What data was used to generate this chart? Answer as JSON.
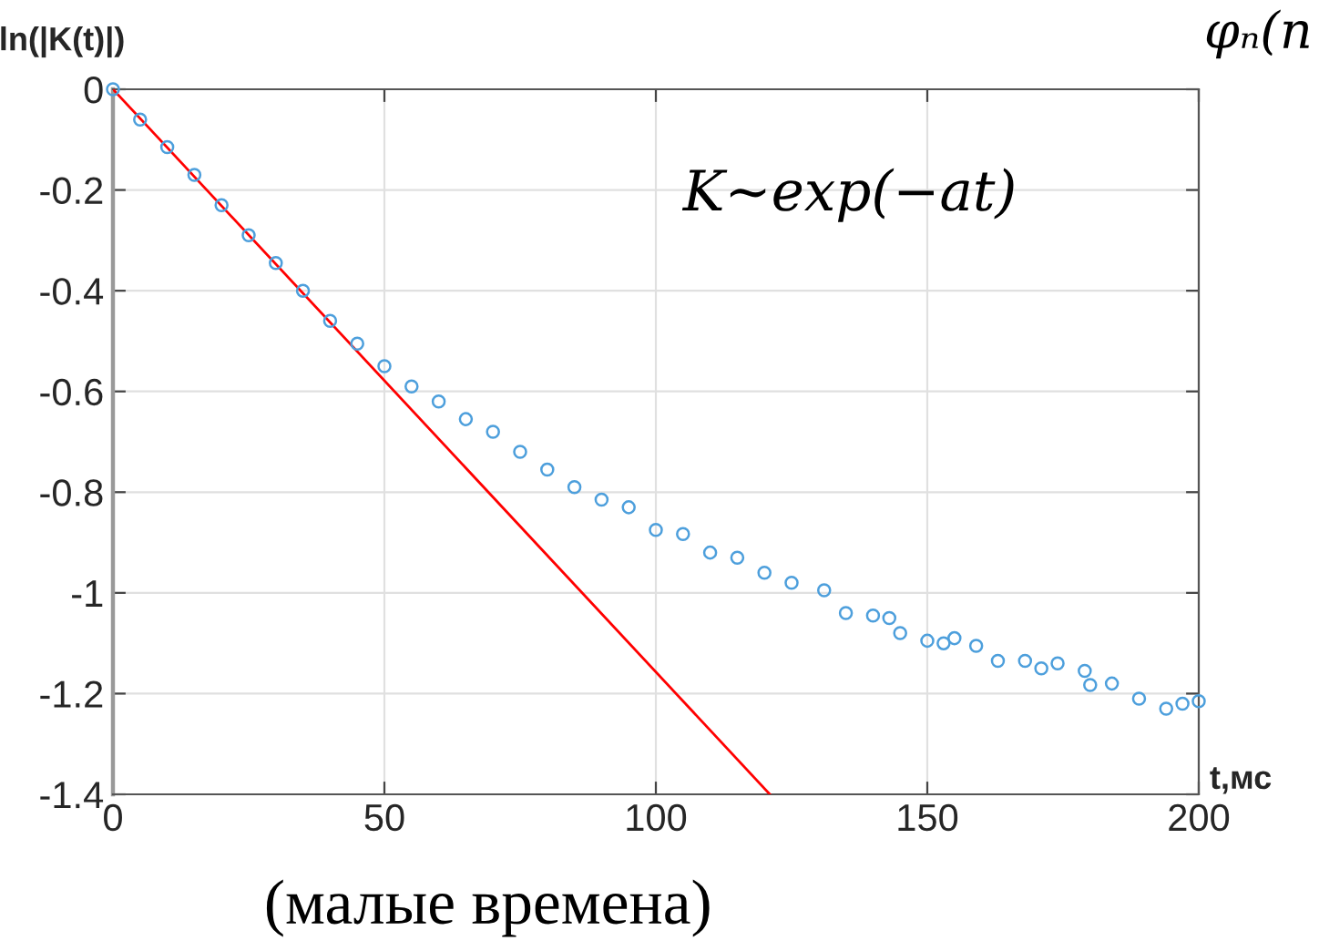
{
  "chart_data": {
    "type": "scatter",
    "xlabel": "t,мс",
    "ylabel": "ln(|K(t)|)",
    "xlim": [
      0,
      200
    ],
    "ylim": [
      -1.4,
      0
    ],
    "xticks": [
      0,
      50,
      100,
      150,
      200
    ],
    "yticks": [
      -1.4,
      -1.2,
      -1,
      -0.8,
      -0.6,
      -0.4,
      -0.2,
      0
    ],
    "grid": true,
    "series": [
      {
        "color": "#4d9fdc",
        "marker": "circle",
        "x": [
          0,
          5,
          10,
          15,
          20,
          25,
          30,
          35,
          40,
          45,
          50,
          55,
          60,
          65,
          70,
          75,
          80,
          85,
          90,
          95,
          100,
          105,
          110,
          115,
          120,
          125,
          131,
          135,
          140,
          143,
          145,
          150,
          153,
          155,
          159,
          163,
          168,
          171,
          174,
          179,
          180,
          184,
          189,
          194,
          197,
          200
        ],
        "values": [
          0,
          -0.06,
          -0.115,
          -0.17,
          -0.23,
          -0.29,
          -0.345,
          -0.4,
          -0.46,
          -0.505,
          -0.55,
          -0.59,
          -0.62,
          -0.655,
          -0.68,
          -0.72,
          -0.755,
          -0.79,
          -0.815,
          -0.83,
          -0.875,
          -0.883,
          -0.92,
          -0.93,
          -0.96,
          -0.98,
          -0.995,
          -1.04,
          -1.045,
          -1.05,
          -1.08,
          -1.095,
          -1.1,
          -1.09,
          -1.105,
          -1.135,
          -1.135,
          -1.15,
          -1.14,
          -1.155,
          -1.183,
          -1.18,
          -1.21,
          -1.23,
          -1.22,
          -1.215
        ]
      },
      {
        "type": "line",
        "color": "#ff0000",
        "x": [
          0,
          121
        ],
        "values": [
          0,
          -1.4
        ]
      }
    ],
    "annotations": [
      "K~exp(−at)",
      "(малые времена)",
      "φₙ(n"
    ]
  }
}
